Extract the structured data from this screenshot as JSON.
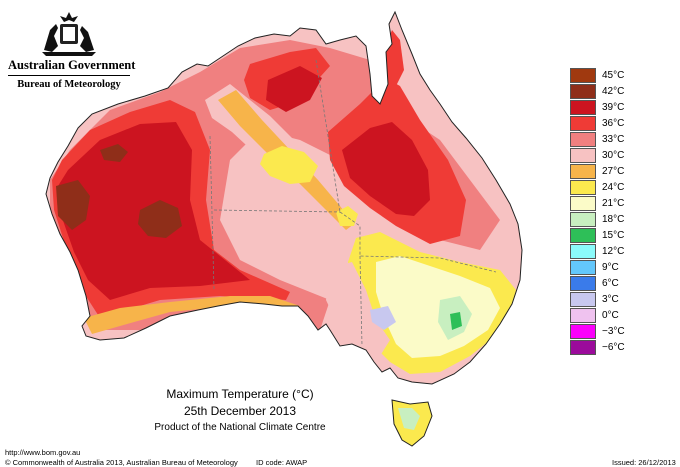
{
  "header": {
    "government": "Australian Government",
    "bureau": "Bureau of Meteorology"
  },
  "legend": {
    "items": [
      {
        "label": "45°C",
        "color": "#a0390f"
      },
      {
        "label": "42°C",
        "color": "#8f2e19"
      },
      {
        "label": "39°C",
        "color": "#cc1420"
      },
      {
        "label": "36°C",
        "color": "#ef3b36"
      },
      {
        "label": "33°C",
        "color": "#f08080"
      },
      {
        "label": "30°C",
        "color": "#f7c2c2"
      },
      {
        "label": "27°C",
        "color": "#f7b44a"
      },
      {
        "label": "24°C",
        "color": "#fbe94e"
      },
      {
        "label": "21°C",
        "color": "#fbfbc8"
      },
      {
        "label": "18°C",
        "color": "#c8efc0"
      },
      {
        "label": "15°C",
        "color": "#2ebf58"
      },
      {
        "label": "12°C",
        "color": "#8bfbfb"
      },
      {
        "label": "9°C",
        "color": "#63c7fb"
      },
      {
        "label": "6°C",
        "color": "#3a7bea"
      },
      {
        "label": "3°C",
        "color": "#c8c8ef"
      },
      {
        "label": "0°C",
        "color": "#efc2ef"
      },
      {
        "label": "−3°C",
        "color": "#fb00fb"
      },
      {
        "label": "−6°C",
        "color": "#9b0b9b"
      }
    ]
  },
  "title": {
    "line1": "Maximum Temperature (°C)",
    "line2": "25th December 2013",
    "line3": "Product of the National Climate Centre"
  },
  "footer": {
    "url": "http://www.bom.gov.au",
    "copyright": "© Commonwealth of Australia 2013, Australian Bureau of Meteorology",
    "id_code": "ID code: AWAP",
    "issued": "Issued: 26/12/2013"
  }
}
